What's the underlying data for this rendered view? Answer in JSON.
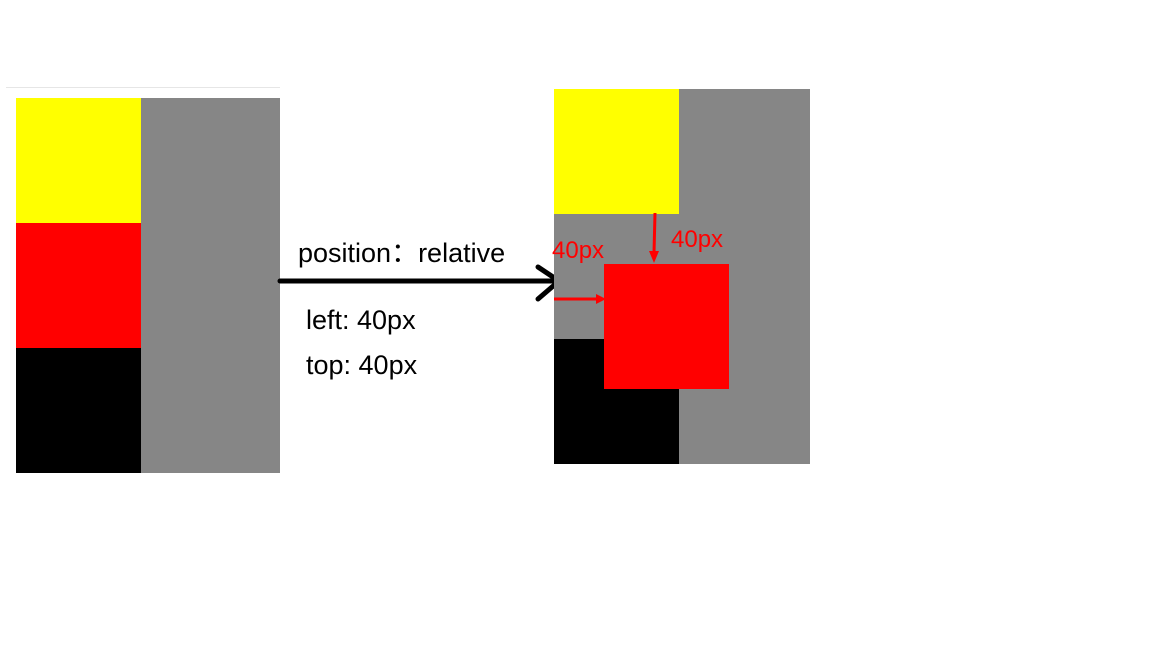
{
  "before": {
    "colors": {
      "yellow": "#ffff00",
      "red": "#ff0000",
      "black": "#000000",
      "gray": "#868686"
    }
  },
  "transition": {
    "rule": "position：relative",
    "left": "left: 40px",
    "top": "top: 40px",
    "arrow_color": "#000000"
  },
  "after": {
    "colors": {
      "yellow": "#ffff00",
      "red": "#ff0000",
      "black": "#000000",
      "gray": "#868686"
    },
    "left_offset_label": "40px",
    "top_offset_label": "40px",
    "annotation_color": "#ff0000"
  }
}
